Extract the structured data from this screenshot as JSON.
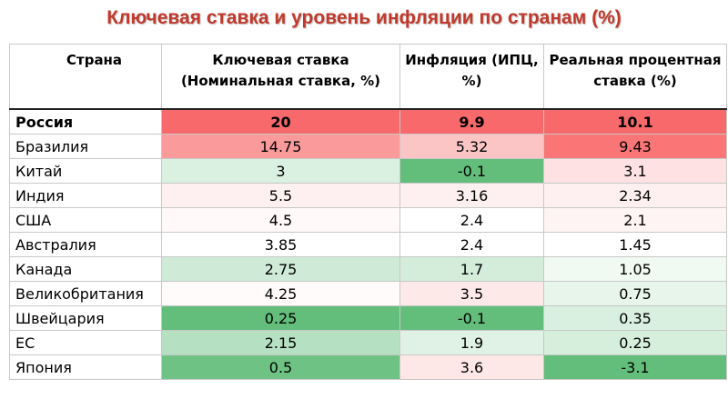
{
  "title": "Ключевая ставка и уровень инфляции по странам (%)",
  "colors": {
    "title": "#c0392b",
    "high": "#f8696b",
    "mid": "#ffffff",
    "low": "#63be7b"
  },
  "chart_data": {
    "type": "table",
    "columns": [
      "Страна",
      "Ключевая ставка (Номинальная ставка, %)",
      "Инфляция (ИПЦ, %)",
      "Реальная процентная ставка (%)"
    ],
    "header_lines": [
      [
        "Страна"
      ],
      [
        "Ключевая ставка",
        "(Номинальная ставка, %)"
      ],
      [
        "Инфляция (ИПЦ,",
        "%)"
      ],
      [
        "Реальная процентная",
        "ставка (%)"
      ]
    ],
    "rows": [
      {
        "country": "Россия",
        "bold": true,
        "values": [
          "20",
          "9.9",
          "10.1"
        ]
      },
      {
        "country": "Бразилия",
        "values": [
          "14.75",
          "5.32",
          "9.43"
        ]
      },
      {
        "country": "Китай",
        "values": [
          "3",
          "-0.1",
          "3.1"
        ]
      },
      {
        "country": "Индия",
        "values": [
          "5.5",
          "3.16",
          "2.34"
        ]
      },
      {
        "country": "США",
        "values": [
          "4.5",
          "2.4",
          "2.1"
        ]
      },
      {
        "country": "Австралия",
        "values": [
          "3.85",
          "2.4",
          "1.45"
        ]
      },
      {
        "country": "Канада",
        "values": [
          "2.75",
          "1.7",
          "1.05"
        ]
      },
      {
        "country": "Великобритания",
        "values": [
          "4.25",
          "3.5",
          "0.75"
        ]
      },
      {
        "country": "Швейцария",
        "values": [
          "0.25",
          "-0.1",
          "0.35"
        ]
      },
      {
        "country": "ЕС",
        "values": [
          "2.15",
          "1.9",
          "0.25"
        ]
      },
      {
        "country": "Япония",
        "values": [
          "0.5",
          "3.6",
          "-3.1"
        ]
      }
    ]
  }
}
